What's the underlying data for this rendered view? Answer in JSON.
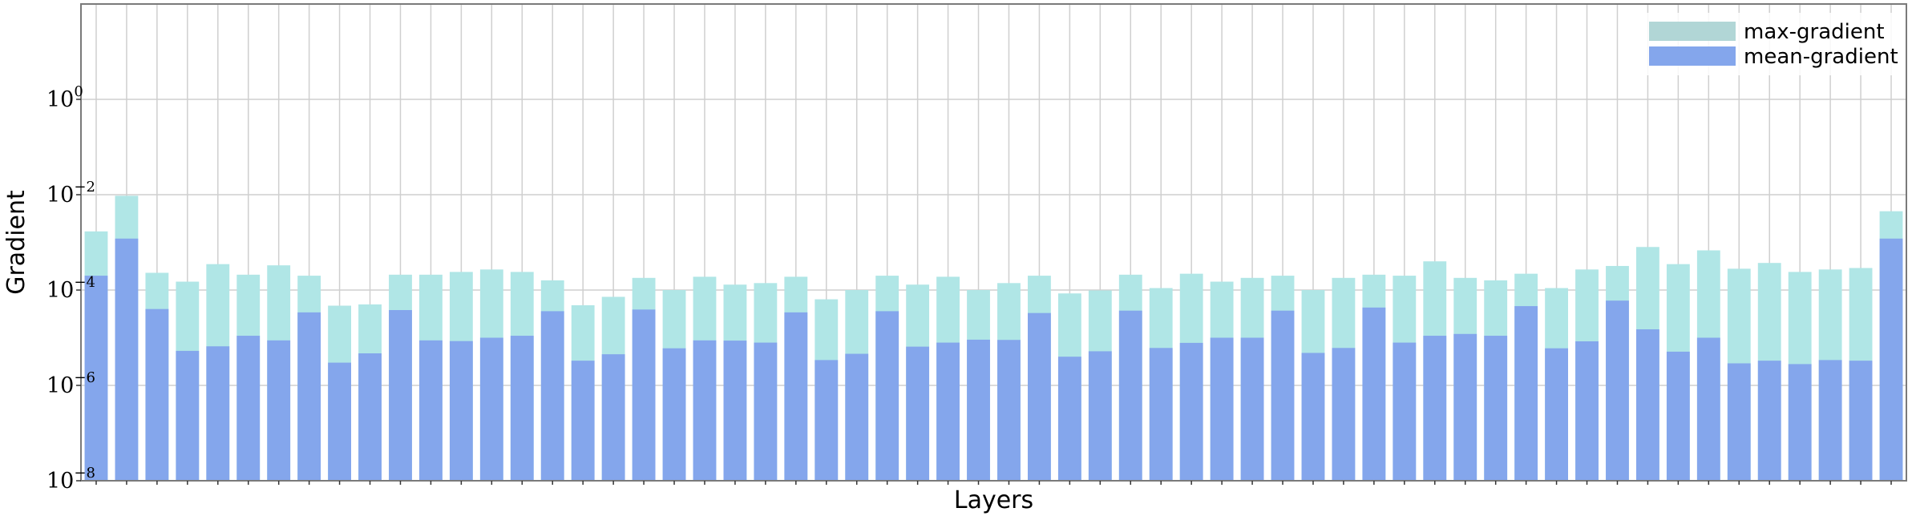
{
  "chart_data": {
    "type": "bar",
    "xlabel": "Layers",
    "ylabel": "Gradient",
    "yscale": "log",
    "ylim": [
      1e-08,
      100
    ],
    "yticks": [
      {
        "value": 1e-08,
        "base": "10",
        "exp": "−8"
      },
      {
        "value": 1e-06,
        "base": "10",
        "exp": "−6"
      },
      {
        "value": 0.0001,
        "base": "10",
        "exp": "−4"
      },
      {
        "value": 0.01,
        "base": "10",
        "exp": "−2"
      },
      {
        "value": 1,
        "base": "10",
        "exp": "0"
      }
    ],
    "grid": true,
    "overlay": true,
    "legend_position": "top-right",
    "colors": {
      "max": "#b0e6e6",
      "mean": "#84a6ec",
      "legend_max": "#b1d6d6",
      "grid": "#cfcfcf",
      "frame": "#7a7a7a"
    },
    "series": [
      {
        "name": "max-gradient",
        "values": [
          0.0017,
          0.0095,
          0.00023,
          0.00015,
          0.00035,
          0.00021,
          0.00033,
          0.0002,
          4.7e-05,
          5e-05,
          0.00021,
          0.00021,
          0.00024,
          0.00027,
          0.00024,
          0.00016,
          4.8e-05,
          7.2e-05,
          0.00018,
          0.0001,
          0.00019,
          0.00013,
          0.00014,
          0.00019,
          6.4e-05,
          0.0001,
          0.0002,
          0.00013,
          0.00019,
          0.0001,
          0.00014,
          0.0002,
          8.5e-05,
          9.8e-05,
          0.00021,
          0.00011,
          0.00022,
          0.00015,
          0.00018,
          0.0002,
          0.0001,
          0.00018,
          0.00021,
          0.0002,
          0.0004,
          0.00018,
          0.00016,
          0.00022,
          0.00011,
          0.00027,
          0.00032,
          0.0008,
          0.00035,
          0.00068,
          0.00028,
          0.00037,
          0.00024,
          0.00027,
          0.00029,
          0.0045
        ]
      },
      {
        "name": "mean-gradient",
        "values": [
          0.0002,
          0.0012,
          4e-05,
          5.3e-06,
          6.6e-06,
          1.1e-05,
          8.8e-06,
          3.4e-05,
          3e-06,
          4.7e-06,
          3.8e-05,
          8.8e-06,
          8.5e-06,
          1e-05,
          1.1e-05,
          3.6e-05,
          3.3e-06,
          4.5e-06,
          3.9e-05,
          6e-06,
          8.8e-06,
          8.7e-06,
          7.9e-06,
          3.4e-05,
          3.4e-06,
          4.6e-06,
          3.6e-05,
          6.5e-06,
          7.9e-06,
          9.1e-06,
          9e-06,
          3.3e-05,
          4e-06,
          5.2e-06,
          3.7e-05,
          6.1e-06,
          7.8e-06,
          1e-05,
          1e-05,
          3.7e-05,
          4.8e-06,
          6.1e-06,
          4.3e-05,
          7.9e-06,
          1.1e-05,
          1.2e-05,
          1.1e-05,
          4.6e-05,
          6e-06,
          8.4e-06,
          6e-05,
          1.5e-05,
          5.1e-06,
          1e-05,
          2.9e-06,
          3.3e-06,
          2.8e-06,
          3.4e-06,
          3.3e-06,
          0.0012
        ]
      }
    ]
  }
}
